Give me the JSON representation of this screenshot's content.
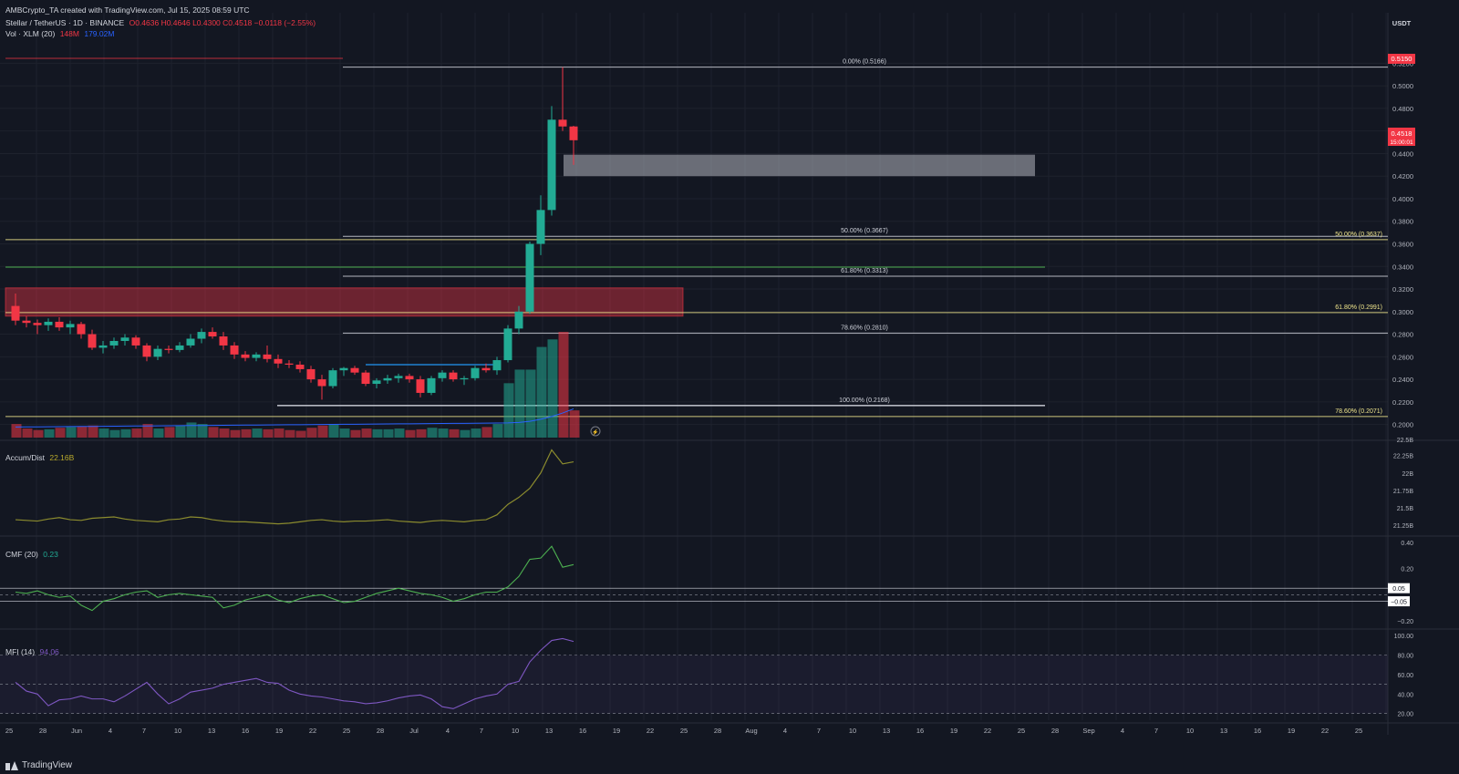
{
  "header": {
    "credit": "AMBCrypto_TA created with TradingView.com, Jul 15, 2025 08:59 UTC",
    "symbol": "Stellar / TetherUS · 1D · BINANCE",
    "ohlc": "O0.4636 H0.4646 L0.4300 C0.4518 −0.0118 (−2.55%)",
    "vol_line_label": "Vol",
    "vol_line_values": "148M −0.0118 (−2.55%)",
    "volume_label": "Vol · XLM (20)",
    "volume_value_1": "148M",
    "volume_value_2": "179.02M"
  },
  "axis": {
    "currency": "USDT",
    "price_ticks": [
      "0.5200",
      "0.5000",
      "0.4800",
      "0.4600",
      "0.4400",
      "0.4200",
      "0.4000",
      "0.3800",
      "0.3600",
      "0.3400",
      "0.3200",
      "0.3000",
      "0.2800",
      "0.2600",
      "0.2400",
      "0.2200",
      "0.2000"
    ],
    "last_price": "0.4518",
    "countdown": "15:00:01",
    "high_badge": "0.5150",
    "x_ticks": [
      "25",
      "28",
      "Jun",
      "4",
      "7",
      "10",
      "13",
      "16",
      "19",
      "22",
      "25",
      "28",
      "Jul",
      "4",
      "7",
      "10",
      "13",
      "16",
      "19",
      "22",
      "25",
      "28",
      "Aug",
      "4",
      "7",
      "10",
      "13",
      "16",
      "19",
      "22",
      "25",
      "28",
      "Sep",
      "4",
      "7",
      "10",
      "13",
      "16",
      "19",
      "22",
      "25"
    ],
    "accum_ticks": [
      "22.25B",
      "22B",
      "21.75B",
      "21.5B",
      "21.25B"
    ],
    "cmf_ticks": [
      "0.40",
      "0.20",
      "0.05",
      "−0.05",
      "−0.20"
    ],
    "mfi_ticks": [
      "100.00",
      "80.00",
      "60.00",
      "40.00",
      "20.00"
    ],
    "cut_tick": "22.5B"
  },
  "indicators": {
    "accum_label": "Accum/Dist",
    "accum_value": "22.16B",
    "cmf_label": "CMF (20)",
    "cmf_value": "0.23",
    "mfi_label": "MFI (14)",
    "mfi_value": "94.06"
  },
  "footer": {
    "brand": "TradingView"
  },
  "colors": {
    "up": "#22ab94",
    "down": "#f23645",
    "bg": "#131722",
    "grid": "#1e222d",
    "fib_white": "#d1d4dc",
    "fib_yellow": "#f0e68c",
    "fib_green": "#4caf50",
    "ad": "#8b8b2e",
    "cmf": "#4caf50",
    "mfi": "#7e57c2"
  },
  "chart_data": {
    "type": "candlestick",
    "title": "Stellar / TetherUS · 1D · BINANCE",
    "x_start": "2025-05-22",
    "ylim": [
      0.19,
      0.53
    ],
    "candles": [
      [
        0.305,
        0.316,
        0.288,
        0.292
      ],
      [
        0.292,
        0.296,
        0.286,
        0.29
      ],
      [
        0.29,
        0.293,
        0.28,
        0.288
      ],
      [
        0.288,
        0.294,
        0.283,
        0.291
      ],
      [
        0.291,
        0.295,
        0.283,
        0.286
      ],
      [
        0.286,
        0.292,
        0.28,
        0.289
      ],
      [
        0.289,
        0.291,
        0.276,
        0.28
      ],
      [
        0.28,
        0.284,
        0.266,
        0.268
      ],
      [
        0.268,
        0.274,
        0.263,
        0.27
      ],
      [
        0.27,
        0.277,
        0.267,
        0.274
      ],
      [
        0.274,
        0.28,
        0.27,
        0.277
      ],
      [
        0.277,
        0.279,
        0.267,
        0.27
      ],
      [
        0.27,
        0.272,
        0.256,
        0.26
      ],
      [
        0.26,
        0.27,
        0.257,
        0.267
      ],
      [
        0.267,
        0.27,
        0.263,
        0.266
      ],
      [
        0.266,
        0.273,
        0.264,
        0.27
      ],
      [
        0.27,
        0.28,
        0.268,
        0.276
      ],
      [
        0.276,
        0.285,
        0.272,
        0.282
      ],
      [
        0.282,
        0.286,
        0.276,
        0.278
      ],
      [
        0.278,
        0.282,
        0.266,
        0.27
      ],
      [
        0.27,
        0.273,
        0.258,
        0.262
      ],
      [
        0.262,
        0.265,
        0.256,
        0.259
      ],
      [
        0.259,
        0.264,
        0.256,
        0.262
      ],
      [
        0.262,
        0.27,
        0.255,
        0.258
      ],
      [
        0.258,
        0.262,
        0.25,
        0.254
      ],
      [
        0.254,
        0.257,
        0.25,
        0.253
      ],
      [
        0.253,
        0.256,
        0.246,
        0.249
      ],
      [
        0.249,
        0.252,
        0.237,
        0.24
      ],
      [
        0.24,
        0.244,
        0.222,
        0.234
      ],
      [
        0.234,
        0.25,
        0.232,
        0.248
      ],
      [
        0.248,
        0.251,
        0.243,
        0.25
      ],
      [
        0.25,
        0.252,
        0.244,
        0.246
      ],
      [
        0.246,
        0.248,
        0.234,
        0.236
      ],
      [
        0.236,
        0.241,
        0.232,
        0.239
      ],
      [
        0.239,
        0.244,
        0.236,
        0.241
      ],
      [
        0.241,
        0.245,
        0.237,
        0.243
      ],
      [
        0.243,
        0.245,
        0.237,
        0.24
      ],
      [
        0.24,
        0.243,
        0.224,
        0.228
      ],
      [
        0.228,
        0.243,
        0.226,
        0.241
      ],
      [
        0.241,
        0.248,
        0.238,
        0.246
      ],
      [
        0.246,
        0.248,
        0.238,
        0.24
      ],
      [
        0.24,
        0.243,
        0.235,
        0.241
      ],
      [
        0.241,
        0.252,
        0.239,
        0.25
      ],
      [
        0.25,
        0.254,
        0.246,
        0.248
      ],
      [
        0.248,
        0.26,
        0.244,
        0.257
      ],
      [
        0.257,
        0.288,
        0.255,
        0.285
      ],
      [
        0.285,
        0.305,
        0.28,
        0.3
      ],
      [
        0.3,
        0.362,
        0.298,
        0.36
      ],
      [
        0.36,
        0.403,
        0.35,
        0.39
      ],
      [
        0.39,
        0.482,
        0.385,
        0.47
      ],
      [
        0.47,
        0.5166,
        0.46,
        0.464
      ],
      [
        0.464,
        0.4646,
        0.43,
        0.4518
      ]
    ],
    "volume": [
      18,
      12,
      10,
      11,
      13,
      14,
      15,
      16,
      12,
      10,
      11,
      12,
      18,
      12,
      14,
      16,
      20,
      18,
      14,
      12,
      10,
      11,
      12,
      11,
      12,
      10,
      9,
      13,
      16,
      18,
      12,
      10,
      12,
      11,
      11,
      12,
      10,
      11,
      13,
      12,
      11,
      10,
      12,
      14,
      18,
      72,
      90,
      90,
      120,
      130,
      140,
      36
    ],
    "fib_levels": [
      {
        "label": "0.00% (0.5166)",
        "value": 0.5166
      },
      {
        "label": "50.00% (0.3667)",
        "value": 0.3667
      },
      {
        "label": "61.80% (0.3313)",
        "value": 0.3313
      },
      {
        "label": "78.60% (0.2810)",
        "value": 0.281
      },
      {
        "label": "100.00% (0.2168)",
        "value": 0.2168
      },
      {
        "label": "50.00% (0.3637)",
        "value": 0.3637
      },
      {
        "label": "61.80% (0.2991)",
        "value": 0.2991
      },
      {
        "label": "78.60% (0.2071)",
        "value": 0.2071
      }
    ],
    "zones": [
      {
        "name": "supply",
        "from": 0.296,
        "to": 0.321,
        "color": "#f23645"
      },
      {
        "name": "demand",
        "from": 0.42,
        "to": 0.439,
        "color": "#b2b5be"
      }
    ],
    "accum_dist": [
      21.33,
      21.32,
      21.31,
      21.34,
      21.36,
      21.33,
      21.32,
      21.35,
      21.36,
      21.37,
      21.34,
      21.32,
      21.31,
      21.3,
      21.33,
      21.34,
      21.37,
      21.36,
      21.33,
      21.31,
      21.3,
      21.3,
      21.29,
      21.28,
      21.27,
      21.28,
      21.3,
      21.32,
      21.33,
      21.31,
      21.3,
      21.31,
      21.31,
      21.32,
      21.33,
      21.31,
      21.3,
      21.29,
      21.31,
      21.32,
      21.31,
      21.3,
      21.32,
      21.33,
      21.4,
      21.55,
      21.65,
      21.78,
      22.0,
      22.33,
      22.13,
      22.16
    ],
    "cmf": [
      0.02,
      0.01,
      0.03,
      0.0,
      -0.02,
      -0.01,
      -0.08,
      -0.12,
      -0.05,
      -0.03,
      0.0,
      0.02,
      0.03,
      -0.02,
      0.0,
      0.01,
      0.0,
      -0.01,
      -0.02,
      -0.1,
      -0.08,
      -0.04,
      -0.02,
      0.0,
      -0.04,
      -0.06,
      -0.03,
      -0.01,
      0.0,
      -0.03,
      -0.06,
      -0.05,
      -0.02,
      0.01,
      0.03,
      0.05,
      0.03,
      0.01,
      0.0,
      -0.02,
      -0.05,
      -0.03,
      0.0,
      0.02,
      0.02,
      0.06,
      0.14,
      0.27,
      0.28,
      0.37,
      0.21,
      0.23
    ],
    "mfi": [
      52,
      43,
      40,
      28,
      34,
      35,
      38,
      35,
      35,
      32,
      38,
      45,
      52,
      40,
      30,
      35,
      42,
      44,
      46,
      50,
      52,
      54,
      56,
      52,
      51,
      44,
      40,
      38,
      37,
      35,
      33,
      32,
      30,
      31,
      33,
      36,
      38,
      39,
      35,
      27,
      25,
      30,
      35,
      38,
      40,
      50,
      53,
      73,
      85,
      95,
      97,
      94
    ]
  }
}
